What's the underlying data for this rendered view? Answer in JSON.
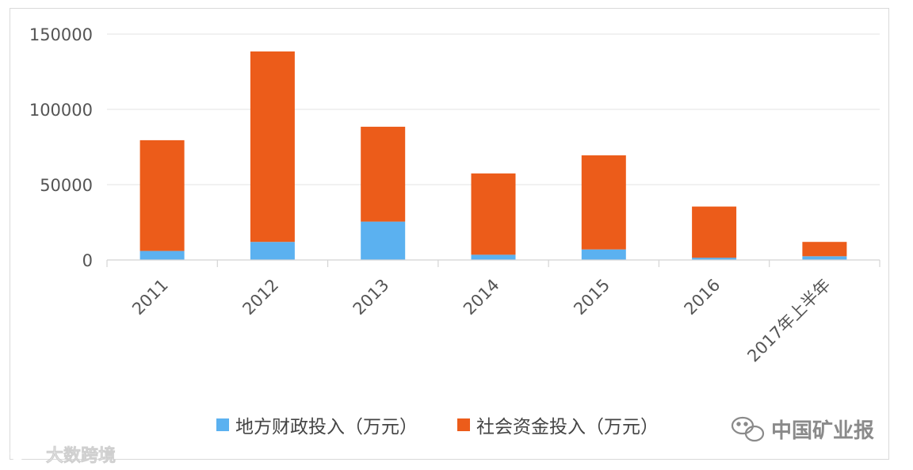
{
  "chart_data": {
    "type": "bar",
    "stacked": true,
    "categories": [
      "2011",
      "2012",
      "2013",
      "2014",
      "2015",
      "2016",
      "2017年上半年"
    ],
    "series": [
      {
        "name": "地方财政投入（万元）",
        "color": "#5bb1f0",
        "values": [
          6000,
          12000,
          25500,
          3500,
          7000,
          1500,
          2500
        ]
      },
      {
        "name": "社会资金投入（万元）",
        "color": "#ec5c1a",
        "values": [
          73500,
          126500,
          63000,
          54000,
          62500,
          34000,
          9500
        ]
      }
    ],
    "yticks": [
      "0",
      "50000",
      "100000",
      "150000"
    ],
    "ylim": [
      0,
      150000
    ],
    "grid": true,
    "legend": "bottom"
  },
  "watermarks": {
    "right_text": "中国矿业报",
    "left_text": "大数跨境"
  }
}
